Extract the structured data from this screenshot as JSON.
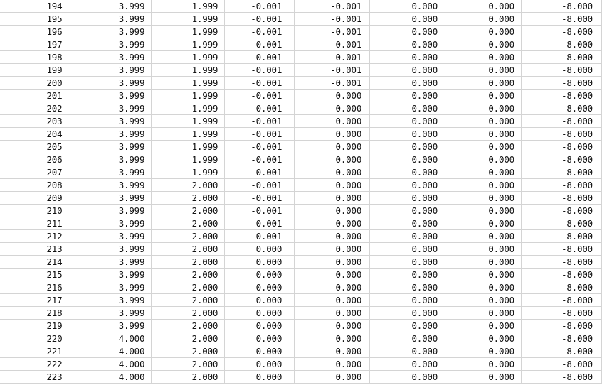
{
  "rows": [
    [
      "194",
      "3.999",
      "1.999",
      "-0.001",
      "-0.001",
      "0.000",
      "0.000",
      "-8.000"
    ],
    [
      "195",
      "3.999",
      "1.999",
      "-0.001",
      "-0.001",
      "0.000",
      "0.000",
      "-8.000"
    ],
    [
      "196",
      "3.999",
      "1.999",
      "-0.001",
      "-0.001",
      "0.000",
      "0.000",
      "-8.000"
    ],
    [
      "197",
      "3.999",
      "1.999",
      "-0.001",
      "-0.001",
      "0.000",
      "0.000",
      "-8.000"
    ],
    [
      "198",
      "3.999",
      "1.999",
      "-0.001",
      "-0.001",
      "0.000",
      "0.000",
      "-8.000"
    ],
    [
      "199",
      "3.999",
      "1.999",
      "-0.001",
      "-0.001",
      "0.000",
      "0.000",
      "-8.000"
    ],
    [
      "200",
      "3.999",
      "1.999",
      "-0.001",
      "-0.001",
      "0.000",
      "0.000",
      "-8.000"
    ],
    [
      "201",
      "3.999",
      "1.999",
      "-0.001",
      "0.000",
      "0.000",
      "0.000",
      "-8.000"
    ],
    [
      "202",
      "3.999",
      "1.999",
      "-0.001",
      "0.000",
      "0.000",
      "0.000",
      "-8.000"
    ],
    [
      "203",
      "3.999",
      "1.999",
      "-0.001",
      "0.000",
      "0.000",
      "0.000",
      "-8.000"
    ],
    [
      "204",
      "3.999",
      "1.999",
      "-0.001",
      "0.000",
      "0.000",
      "0.000",
      "-8.000"
    ],
    [
      "205",
      "3.999",
      "1.999",
      "-0.001",
      "0.000",
      "0.000",
      "0.000",
      "-8.000"
    ],
    [
      "206",
      "3.999",
      "1.999",
      "-0.001",
      "0.000",
      "0.000",
      "0.000",
      "-8.000"
    ],
    [
      "207",
      "3.999",
      "1.999",
      "-0.001",
      "0.000",
      "0.000",
      "0.000",
      "-8.000"
    ],
    [
      "208",
      "3.999",
      "2.000",
      "-0.001",
      "0.000",
      "0.000",
      "0.000",
      "-8.000"
    ],
    [
      "209",
      "3.999",
      "2.000",
      "-0.001",
      "0.000",
      "0.000",
      "0.000",
      "-8.000"
    ],
    [
      "210",
      "3.999",
      "2.000",
      "-0.001",
      "0.000",
      "0.000",
      "0.000",
      "-8.000"
    ],
    [
      "211",
      "3.999",
      "2.000",
      "-0.001",
      "0.000",
      "0.000",
      "0.000",
      "-8.000"
    ],
    [
      "212",
      "3.999",
      "2.000",
      "-0.001",
      "0.000",
      "0.000",
      "0.000",
      "-8.000"
    ],
    [
      "213",
      "3.999",
      "2.000",
      "0.000",
      "0.000",
      "0.000",
      "0.000",
      "-8.000"
    ],
    [
      "214",
      "3.999",
      "2.000",
      "0.000",
      "0.000",
      "0.000",
      "0.000",
      "-8.000"
    ],
    [
      "215",
      "3.999",
      "2.000",
      "0.000",
      "0.000",
      "0.000",
      "0.000",
      "-8.000"
    ],
    [
      "216",
      "3.999",
      "2.000",
      "0.000",
      "0.000",
      "0.000",
      "0.000",
      "-8.000"
    ],
    [
      "217",
      "3.999",
      "2.000",
      "0.000",
      "0.000",
      "0.000",
      "0.000",
      "-8.000"
    ],
    [
      "218",
      "3.999",
      "2.000",
      "0.000",
      "0.000",
      "0.000",
      "0.000",
      "-8.000"
    ],
    [
      "219",
      "3.999",
      "2.000",
      "0.000",
      "0.000",
      "0.000",
      "0.000",
      "-8.000"
    ],
    [
      "220",
      "4.000",
      "2.000",
      "0.000",
      "0.000",
      "0.000",
      "0.000",
      "-8.000"
    ],
    [
      "221",
      "4.000",
      "2.000",
      "0.000",
      "0.000",
      "0.000",
      "0.000",
      "-8.000"
    ],
    [
      "222",
      "4.000",
      "2.000",
      "0.000",
      "0.000",
      "0.000",
      "0.000",
      "-8.000"
    ],
    [
      "223",
      "4.000",
      "2.000",
      "0.000",
      "0.000",
      "0.000",
      "0.000",
      "-8.000"
    ]
  ]
}
